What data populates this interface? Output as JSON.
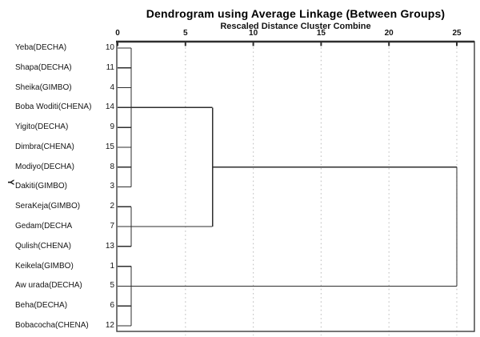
{
  "page": {
    "background": "#ffffff"
  },
  "chart_data": {
    "type": "dendrogram",
    "title": "Dendrogram using Average Linkage (Between Groups)",
    "subtitle": "Rescaled Distance Cluster Combine",
    "y_axis_label": "Y",
    "x_axis": {
      "position": "top",
      "min": 0,
      "max": 25,
      "ticks": [
        0,
        5,
        10,
        15,
        20,
        25
      ],
      "gridlines_at": [
        5,
        10,
        15,
        20,
        25
      ],
      "grid_style": "dotted"
    },
    "leaves": [
      {
        "row": 1,
        "label": "Yeba(DECHA)",
        "case_number": 10
      },
      {
        "row": 2,
        "label": "Shapa(DECHA)",
        "case_number": 11
      },
      {
        "row": 3,
        "label": "Sheika(GIMBO)",
        "case_number": 4
      },
      {
        "row": 4,
        "label": "Boba Woditi(CHENA)",
        "case_number": 14
      },
      {
        "row": 5,
        "label": "Yigito(DECHA)",
        "case_number": 9
      },
      {
        "row": 6,
        "label": "Dimbra(CHENA)",
        "case_number": 15
      },
      {
        "row": 7,
        "label": "Modiyo(DECHA)",
        "case_number": 8
      },
      {
        "row": 8,
        "label": "Dakiti(GIMBO)",
        "case_number": 3
      },
      {
        "row": 9,
        "label": "SeraKeja(GIMBO)",
        "case_number": 2
      },
      {
        "row": 10,
        "label": "Gedam(DECHA",
        "case_number": 7
      },
      {
        "row": 11,
        "label": "Qulish(CHENA)",
        "case_number": 13
      },
      {
        "row": 12,
        "label": "Keikela(GIMBO)",
        "case_number": 1
      },
      {
        "row": 13,
        "label": "Aw urada(DECHA)",
        "case_number": 5
      },
      {
        "row": 14,
        "label": "Beha(DECHA)",
        "case_number": 6
      },
      {
        "row": 15,
        "label": "Bobacocha(CHENA)",
        "case_number": 12
      }
    ],
    "clusters": [
      {
        "name": "cluster-1",
        "rows": [
          1,
          8
        ],
        "members": [
          10,
          11,
          4,
          14,
          9,
          15,
          8,
          3
        ],
        "bar_distance": 1
      },
      {
        "name": "cluster-2",
        "rows": [
          9,
          11
        ],
        "members": [
          2,
          7,
          13
        ],
        "bar_distance": 1
      },
      {
        "name": "cluster-3",
        "rows": [
          12,
          15
        ],
        "members": [
          1,
          5,
          6,
          12
        ],
        "bar_distance": 1
      }
    ],
    "joins": [
      {
        "between": [
          "cluster-1",
          "cluster-2"
        ],
        "distance": 7,
        "row_from": 4,
        "row_to": 10
      },
      {
        "between": [
          "cluster-1+cluster-2",
          "cluster-3"
        ],
        "distance": 25,
        "row_from": 7,
        "row_to": 13
      }
    ],
    "segments": [
      [
        0,
        1,
        1,
        1
      ],
      [
        0,
        2,
        1,
        2
      ],
      [
        0,
        3,
        1,
        3
      ],
      [
        0,
        4,
        1,
        4
      ],
      [
        0,
        5,
        1,
        5
      ],
      [
        0,
        6,
        1,
        6
      ],
      [
        0,
        7,
        1,
        7
      ],
      [
        0,
        8,
        1,
        8
      ],
      [
        0,
        9,
        1,
        9
      ],
      [
        0,
        10,
        1,
        10
      ],
      [
        0,
        11,
        1,
        11
      ],
      [
        0,
        12,
        1,
        12
      ],
      [
        0,
        13,
        1,
        13
      ],
      [
        0,
        14,
        1,
        14
      ],
      [
        0,
        15,
        1,
        15
      ],
      [
        1,
        1,
        1,
        8
      ],
      [
        1,
        9,
        1,
        11
      ],
      [
        1,
        12,
        1,
        15
      ],
      [
        1,
        4,
        7,
        4
      ],
      [
        1,
        10,
        7,
        10
      ],
      [
        7,
        4,
        7,
        10
      ],
      [
        7,
        7,
        25,
        7
      ],
      [
        1,
        13,
        25,
        13
      ],
      [
        25,
        7,
        25,
        13
      ]
    ],
    "colors": {
      "line": "#2e2e2e",
      "border": "#3c3c3c",
      "grid": "#c6c6c6",
      "text": "#141414"
    }
  }
}
